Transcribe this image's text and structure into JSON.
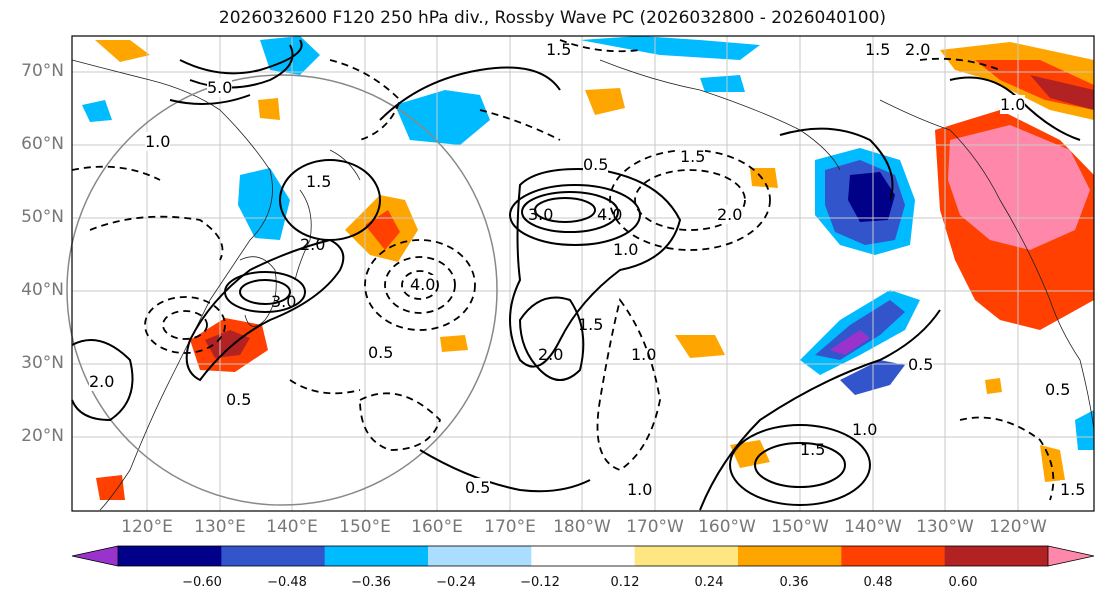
{
  "title": "2026032600 F120 250 hPa div., Rossby Wave PC (2026032800 - 2026040100)",
  "lat_labels": [
    "70°N",
    "60°N",
    "50°N",
    "40°N",
    "30°N",
    "20°N"
  ],
  "lon_labels": [
    "120°E",
    "130°E",
    "140°E",
    "150°E",
    "160°E",
    "170°E",
    "180°W",
    "170°W",
    "160°W",
    "150°W",
    "140°W",
    "130°W",
    "120°W"
  ],
  "colorbar": {
    "colors": [
      "#9a33cc",
      "#000088",
      "#3355cc",
      "#00bbff",
      "#aaddff",
      "#ffffff",
      "#ffe680",
      "#ffa500",
      "#ff4000",
      "#b22222",
      "#ff88aa"
    ],
    "ticks": [
      "−0.60",
      "−0.48",
      "−0.36",
      "−0.24",
      "−0.12",
      "0.12",
      "0.24",
      "0.36",
      "0.48",
      "0.60"
    ]
  },
  "contour_labels": [
    "1.0",
    "1.5",
    "2.0",
    "0.5",
    "5.0",
    "1.5",
    "3.0",
    "4.0",
    "2.0",
    "1.0",
    "1.5",
    "2.0",
    "4.0",
    "0.5",
    "0.5",
    "2.0",
    "1.5",
    "1.0",
    "0.5",
    "0.5",
    "1.5",
    "1.0",
    "1.0",
    "1.5",
    "0.5",
    "1.0",
    "2.0",
    "3.0",
    "1.5"
  ]
}
